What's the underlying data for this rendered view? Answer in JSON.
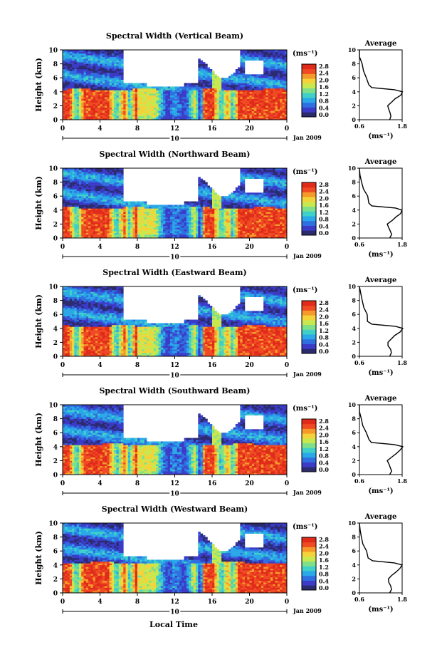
{
  "colors": {
    "colorscale": [
      "#2b2b6e",
      "#3b3bc8",
      "#2f6fe0",
      "#2aa8e8",
      "#3fd0c8",
      "#7fe08a",
      "#c8e850",
      "#f4d23a",
      "#f59a2a",
      "#ef4a23",
      "#e02a1a"
    ],
    "line": "#000000",
    "background": "#ffffff"
  },
  "shared": {
    "ylabel": "Height (km)",
    "xlabel": "Local Time",
    "date_label": "Jan 2009",
    "day_label": "10",
    "colorbar_unit": "(ms⁻¹)",
    "colorbar_ticks": [
      "2.8",
      "2.4",
      "2.0",
      "1.6",
      "1.2",
      "0.8",
      "0.4",
      "0.0"
    ],
    "average_title": "Average",
    "average_unit": "(ms⁻¹)",
    "average_xticks": [
      "0.6",
      "1.8"
    ]
  },
  "chart_data": [
    {
      "type": "heatmap",
      "title": "Spectral Width (Vertical Beam)",
      "xlabel": "Local Time",
      "ylabel": "Height (km)",
      "x_ticks": [
        "0",
        "4",
        "8",
        "12",
        "16",
        "20",
        "0"
      ],
      "y_ticks": [
        "0",
        "2",
        "4",
        "6",
        "8",
        "10"
      ],
      "xlim": [
        0,
        24
      ],
      "ylim": [
        0,
        10
      ],
      "colorbar": {
        "unit": "(ms⁻¹)",
        "range": [
          0.0,
          2.8
        ]
      },
      "profile": {
        "title": "Average",
        "xlabel": "(ms⁻¹)",
        "xlim": [
          0.6,
          1.8
        ],
        "ylim": [
          0,
          10
        ],
        "height": [
          0,
          0.5,
          1,
          1.5,
          2,
          2.5,
          3,
          3.5,
          4,
          4.3,
          4.6,
          5,
          6,
          7,
          8,
          9,
          10
        ],
        "value": [
          1.45,
          1.5,
          1.48,
          1.42,
          1.4,
          1.5,
          1.62,
          1.75,
          1.8,
          1.6,
          0.95,
          0.85,
          0.8,
          0.7,
          0.68,
          0.62,
          0.6
        ]
      }
    },
    {
      "type": "heatmap",
      "title": "Spectral Width (Northward Beam)",
      "xlabel": "Local Time",
      "ylabel": "Height (km)",
      "x_ticks": [
        "0",
        "4",
        "8",
        "12",
        "16",
        "20",
        "0"
      ],
      "y_ticks": [
        "0",
        "2",
        "4",
        "6",
        "8",
        "10"
      ],
      "xlim": [
        0,
        24
      ],
      "ylim": [
        0,
        10
      ],
      "colorbar": {
        "unit": "(ms⁻¹)",
        "range": [
          0.0,
          2.8
        ]
      },
      "profile": {
        "title": "Average",
        "xlabel": "(ms⁻¹)",
        "xlim": [
          0.6,
          1.8
        ],
        "ylim": [
          0,
          10
        ],
        "height": [
          0,
          0.5,
          1,
          1.5,
          2,
          2.5,
          3,
          3.5,
          4,
          4.3,
          4.6,
          5,
          6,
          7,
          8,
          9,
          10
        ],
        "value": [
          1.45,
          1.5,
          1.47,
          1.43,
          1.4,
          1.5,
          1.62,
          1.74,
          1.78,
          1.6,
          0.95,
          0.85,
          0.82,
          0.72,
          0.66,
          0.62,
          0.6
        ]
      }
    },
    {
      "type": "heatmap",
      "title": "Spectral Width (Eastward Beam)",
      "xlabel": "Local Time",
      "ylabel": "Height (km)",
      "x_ticks": [
        "0",
        "4",
        "8",
        "12",
        "16",
        "20",
        "0"
      ],
      "y_ticks": [
        "0",
        "2",
        "4",
        "6",
        "8",
        "10"
      ],
      "xlim": [
        0,
        24
      ],
      "ylim": [
        0,
        10
      ],
      "colorbar": {
        "unit": "(ms⁻¹)",
        "range": [
          0.0,
          2.8
        ]
      },
      "profile": {
        "title": "Average",
        "xlabel": "(ms⁻¹)",
        "xlim": [
          0.6,
          1.8
        ],
        "ylim": [
          0,
          10
        ],
        "height": [
          0,
          0.5,
          1,
          1.5,
          2,
          2.5,
          3,
          3.5,
          4,
          4.3,
          4.6,
          5,
          6,
          7,
          8,
          9,
          10
        ],
        "value": [
          1.45,
          1.48,
          1.46,
          1.42,
          1.4,
          1.5,
          1.6,
          1.74,
          1.8,
          1.62,
          0.95,
          0.84,
          0.8,
          0.72,
          0.68,
          0.64,
          0.6
        ]
      }
    },
    {
      "type": "heatmap",
      "title": "Spectral Width (Southward Beam)",
      "xlabel": "Local Time",
      "ylabel": "Height (km)",
      "x_ticks": [
        "0",
        "4",
        "8",
        "12",
        "16",
        "20",
        "0"
      ],
      "y_ticks": [
        "0",
        "2",
        "4",
        "6",
        "8",
        "10"
      ],
      "xlim": [
        0,
        24
      ],
      "ylim": [
        0,
        10
      ],
      "colorbar": {
        "unit": "(ms⁻¹)",
        "range": [
          0.0,
          2.8
        ]
      },
      "profile": {
        "title": "Average",
        "xlabel": "(ms⁻¹)",
        "xlim": [
          0.6,
          1.8
        ],
        "ylim": [
          0,
          10
        ],
        "height": [
          0,
          0.5,
          1,
          1.5,
          2,
          2.5,
          3,
          3.5,
          4,
          4.3,
          4.6,
          5,
          6,
          7,
          8,
          9,
          10
        ],
        "value": [
          1.45,
          1.5,
          1.47,
          1.42,
          1.4,
          1.5,
          1.62,
          1.74,
          1.8,
          1.6,
          0.95,
          0.86,
          0.8,
          0.7,
          0.66,
          0.62,
          0.6
        ]
      }
    },
    {
      "type": "heatmap",
      "title": "Spectral Width (Westward Beam)",
      "xlabel": "Local Time",
      "ylabel": "Height (km)",
      "x_ticks": [
        "0",
        "4",
        "8",
        "12",
        "16",
        "20",
        "0"
      ],
      "y_ticks": [
        "0",
        "2",
        "4",
        "6",
        "8",
        "10"
      ],
      "xlim": [
        0,
        24
      ],
      "ylim": [
        0,
        10
      ],
      "colorbar": {
        "unit": "(ms⁻¹)",
        "range": [
          0.0,
          2.8
        ]
      },
      "profile": {
        "title": "Average",
        "xlabel": "(ms⁻¹)",
        "xlim": [
          0.6,
          1.8
        ],
        "ylim": [
          0,
          10
        ],
        "height": [
          0,
          0.5,
          1,
          1.5,
          2,
          2.5,
          3,
          3.5,
          4,
          4.3,
          4.6,
          5,
          6,
          7,
          8,
          9,
          10
        ],
        "value": [
          1.45,
          1.5,
          1.48,
          1.43,
          1.4,
          1.52,
          1.62,
          1.75,
          1.8,
          1.6,
          0.95,
          0.84,
          0.8,
          0.7,
          0.66,
          0.62,
          0.6
        ]
      }
    }
  ]
}
